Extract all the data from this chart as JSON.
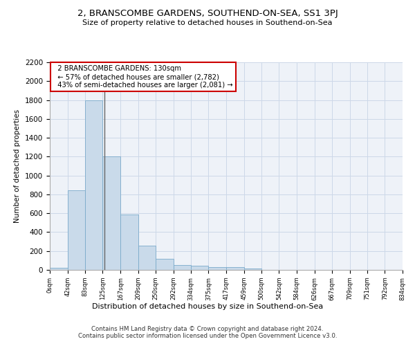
{
  "title": "2, BRANSCOMBE GARDENS, SOUTHEND-ON-SEA, SS1 3PJ",
  "subtitle": "Size of property relative to detached houses in Southend-on-Sea",
  "xlabel": "Distribution of detached houses by size in Southend-on-Sea",
  "ylabel": "Number of detached properties",
  "footer_line1": "Contains HM Land Registry data © Crown copyright and database right 2024.",
  "footer_line2": "Contains public sector information licensed under the Open Government Licence v3.0.",
  "annotation_line1": "2 BRANSCOMBE GARDENS: 130sqm",
  "annotation_line2": "← 57% of detached houses are smaller (2,782)",
  "annotation_line3": "43% of semi-detached houses are larger (2,081) →",
  "property_size": 130,
  "bar_bins": [
    0,
    42,
    83,
    125,
    167,
    209,
    250,
    292,
    334,
    375,
    417,
    459,
    500,
    542,
    584,
    626,
    667,
    709,
    751,
    792,
    834
  ],
  "bar_heights": [
    25,
    840,
    1800,
    1200,
    585,
    260,
    115,
    50,
    45,
    28,
    28,
    12,
    0,
    0,
    0,
    0,
    0,
    0,
    0,
    0
  ],
  "bar_color": "#c9daea",
  "bar_edge_color": "#7aaaca",
  "highlight_line_color": "#666666",
  "annotation_box_color": "#cc0000",
  "grid_color": "#ccd8e8",
  "background_color": "#eef2f8",
  "ylim": [
    0,
    2200
  ],
  "yticks": [
    0,
    200,
    400,
    600,
    800,
    1000,
    1200,
    1400,
    1600,
    1800,
    2000,
    2200
  ],
  "tick_labels": [
    "0sqm",
    "42sqm",
    "83sqm",
    "125sqm",
    "167sqm",
    "209sqm",
    "250sqm",
    "292sqm",
    "334sqm",
    "375sqm",
    "417sqm",
    "459sqm",
    "500sqm",
    "542sqm",
    "584sqm",
    "626sqm",
    "667sqm",
    "709sqm",
    "751sqm",
    "792sqm",
    "834sqm"
  ]
}
